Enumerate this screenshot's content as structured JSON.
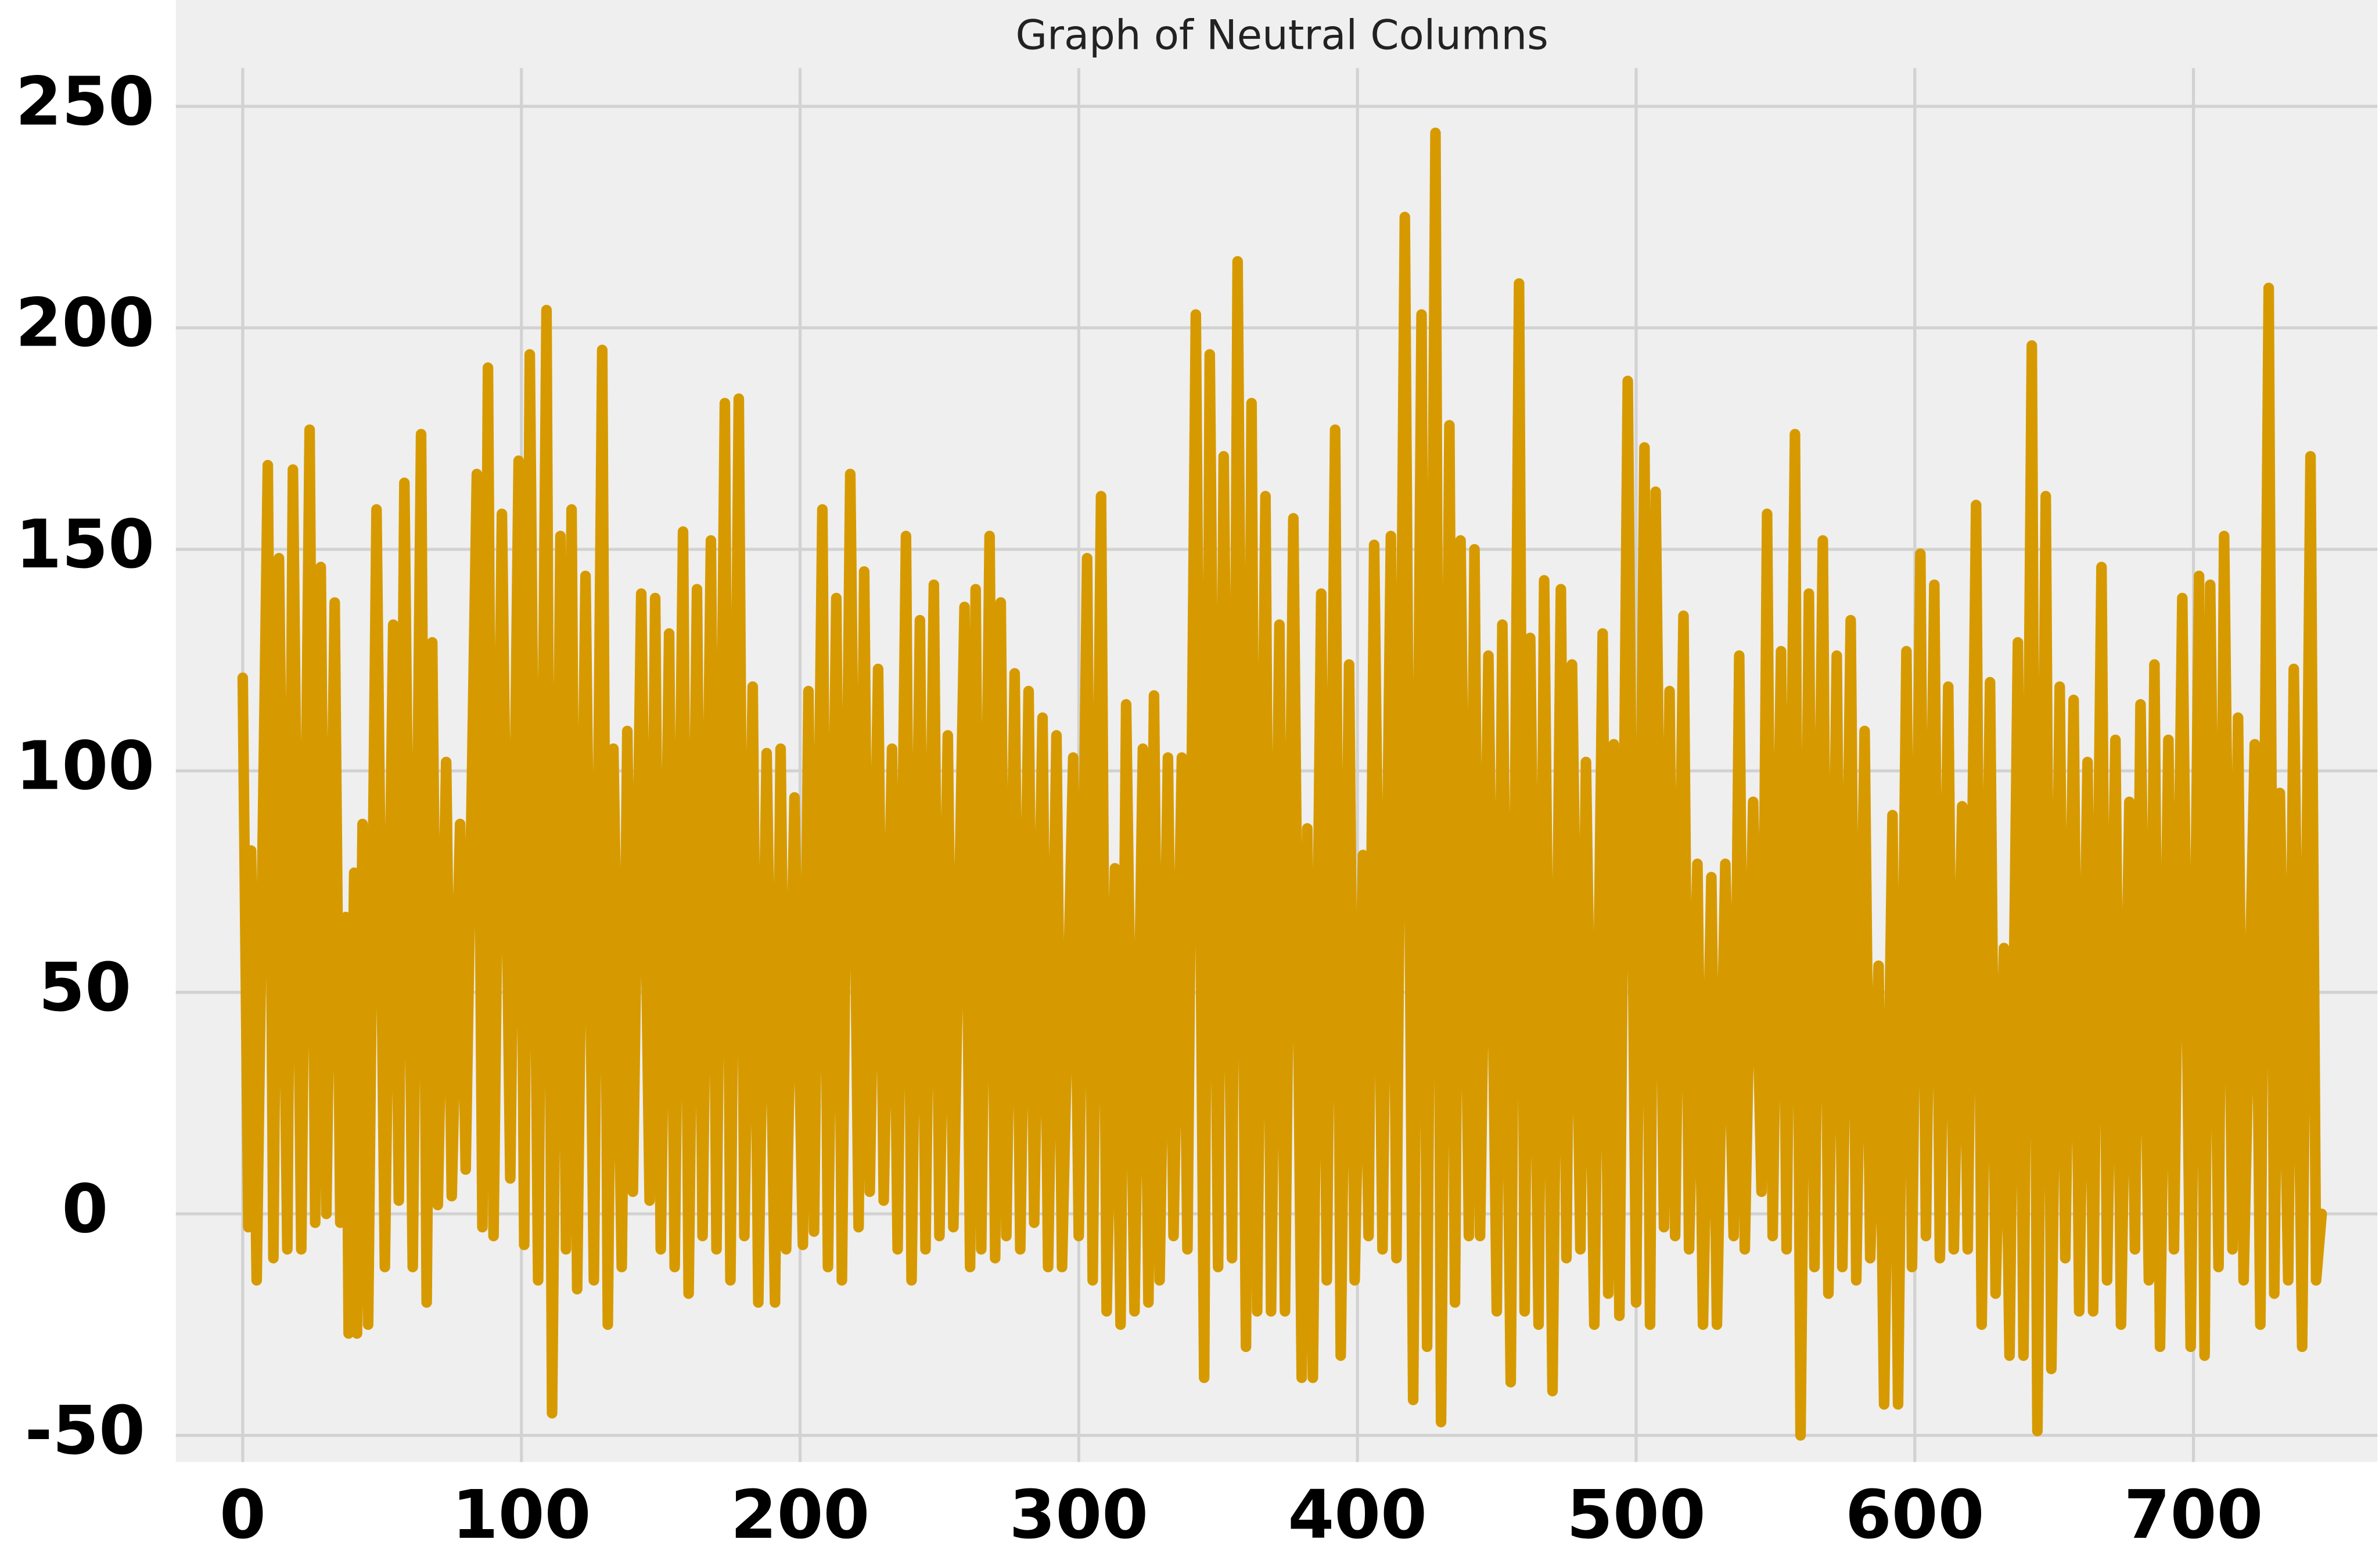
{
  "chart_data": {
    "type": "line",
    "title": "Graph of Neutral Columns",
    "x": [
      0,
      2,
      3,
      5,
      9,
      11,
      13,
      16,
      18,
      21,
      24,
      26,
      28,
      30,
      33,
      35,
      37,
      38,
      40,
      41,
      43,
      45,
      48,
      51,
      54,
      56,
      58,
      61,
      64,
      66,
      68,
      70,
      73,
      75,
      78,
      80,
      84,
      86,
      88,
      90,
      93,
      96,
      99,
      101,
      103,
      106,
      109,
      111,
      114,
      116,
      118,
      120,
      123,
      126,
      129,
      131,
      133,
      136,
      138,
      140,
      143,
      146,
      148,
      150,
      153,
      155,
      158,
      160,
      163,
      165,
      168,
      170,
      173,
      175,
      178,
      180,
      183,
      185,
      188,
      191,
      193,
      195,
      198,
      201,
      203,
      205,
      208,
      210,
      213,
      215,
      218,
      221,
      223,
      225,
      228,
      230,
      233,
      235,
      238,
      240,
      243,
      245,
      248,
      250,
      253,
      255,
      259,
      261,
      263,
      265,
      268,
      270,
      272,
      274,
      277,
      279,
      282,
      284,
      287,
      289,
      292,
      294,
      298,
      300,
      303,
      305,
      308,
      310,
      313,
      315,
      317,
      320,
      323,
      325,
      327,
      329,
      332,
      334,
      337,
      339,
      342,
      345,
      347,
      350,
      352,
      355,
      357,
      360,
      362,
      364,
      367,
      369,
      372,
      374,
      377,
      380,
      382,
      384,
      387,
      389,
      392,
      394,
      397,
      399,
      402,
      404,
      406,
      409,
      412,
      414,
      417,
      420,
      423,
      425,
      428,
      430,
      433,
      435,
      437,
      440,
      442,
      444,
      447,
      450,
      452,
      455,
      458,
      460,
      462,
      465,
      467,
      470,
      473,
      475,
      477,
      480,
      482,
      485,
      488,
      490,
      492,
      494,
      497,
      500,
      503,
      505,
      507,
      510,
      512,
      514,
      517,
      519,
      522,
      524,
      527,
      529,
      532,
      535,
      537,
      539,
      542,
      545,
      547,
      549,
      552,
      554,
      557,
      559,
      562,
      564,
      567,
      569,
      572,
      574,
      577,
      579,
      582,
      584,
      587,
      589,
      592,
      594,
      597,
      599,
      602,
      604,
      607,
      609,
      612,
      614,
      617,
      619,
      622,
      624,
      627,
      629,
      632,
      634,
      637,
      639,
      642,
      644,
      647,
      649,
      652,
      654,
      657,
      659,
      662,
      664,
      667,
      669,
      672,
      674,
      677,
      679,
      681,
      684,
      686,
      688,
      691,
      693,
      696,
      699,
      702,
      704,
      706,
      709,
      711,
      714,
      716,
      718,
      722,
      724,
      727,
      729,
      731,
      734,
      736,
      739,
      742,
      744,
      746
    ],
    "values": [
      121,
      -3,
      82,
      -15,
      169,
      -10,
      148,
      -8,
      168,
      -8,
      177,
      -2,
      146,
      0,
      138,
      -2,
      67,
      -27,
      77,
      -27,
      88,
      -25,
      159,
      -12,
      133,
      3,
      165,
      -12,
      176,
      -20,
      129,
      2,
      102,
      4,
      88,
      10,
      167,
      -3,
      191,
      -5,
      158,
      8,
      170,
      -7,
      194,
      -15,
      204,
      -45,
      153,
      -8,
      159,
      -17,
      144,
      -15,
      195,
      -25,
      105,
      -12,
      109,
      5,
      140,
      3,
      139,
      -8,
      131,
      -12,
      154,
      -18,
      141,
      -5,
      152,
      -8,
      183,
      -15,
      184,
      -5,
      119,
      -20,
      104,
      -20,
      105,
      -8,
      94,
      -7,
      118,
      -4,
      159,
      -12,
      139,
      -15,
      167,
      -3,
      145,
      5,
      123,
      3,
      105,
      -8,
      153,
      -15,
      134,
      -8,
      142,
      -5,
      108,
      -3,
      137,
      -12,
      141,
      -8,
      153,
      -10,
      138,
      -5,
      122,
      -8,
      118,
      -2,
      112,
      -12,
      108,
      -12,
      103,
      -5,
      148,
      -15,
      162,
      -22,
      78,
      -25,
      115,
      -22,
      105,
      -20,
      117,
      -15,
      103,
      -5,
      103,
      -8,
      203,
      -37,
      194,
      -12,
      171,
      -10,
      215,
      -30,
      183,
      -22,
      162,
      -22,
      133,
      -22,
      157,
      -37,
      87,
      -37,
      140,
      -15,
      177,
      -32,
      124,
      -15,
      81,
      -5,
      151,
      -8,
      153,
      -10,
      225,
      -42,
      203,
      -30,
      244,
      -47,
      178,
      -20,
      152,
      -5,
      150,
      -5,
      126,
      -22,
      133,
      -38,
      210,
      -22,
      130,
      -25,
      143,
      -40,
      141,
      -10,
      124,
      -8,
      102,
      -25,
      131,
      -18,
      106,
      -23,
      188,
      -20,
      173,
      -25,
      163,
      -3,
      118,
      -5,
      135,
      -8,
      79,
      -25,
      76,
      -25,
      79,
      -5,
      126,
      -8,
      93,
      5,
      158,
      -5,
      127,
      -8,
      176,
      -50,
      140,
      -12,
      152,
      -18,
      126,
      -12,
      134,
      -15,
      109,
      -10,
      56,
      -43,
      90,
      -43,
      127,
      -12,
      149,
      -5,
      142,
      -10,
      119,
      -8,
      92,
      -8,
      160,
      -25,
      120,
      -18,
      60,
      -32,
      129,
      -32,
      196,
      -49,
      162,
      -35,
      119,
      -10,
      116,
      -22,
      102,
      -22,
      146,
      -15,
      107,
      -25,
      93,
      -8,
      115,
      -15,
      124,
      -30,
      107,
      -8,
      139,
      -30,
      144,
      -32,
      142,
      -12,
      153,
      -8,
      112,
      -15,
      106,
      -25,
      209,
      -18,
      95,
      -15,
      123,
      -30,
      171,
      -15,
      0
    ],
    "color": "#d69a00",
    "xlim": [
      -24,
      766
    ],
    "ylim": [
      -56,
      274
    ],
    "xticks": [
      0,
      100,
      200,
      300,
      400,
      500,
      600,
      700
    ],
    "yticks": [
      -50,
      0,
      50,
      100,
      150,
      200,
      250
    ],
    "grid": true
  }
}
